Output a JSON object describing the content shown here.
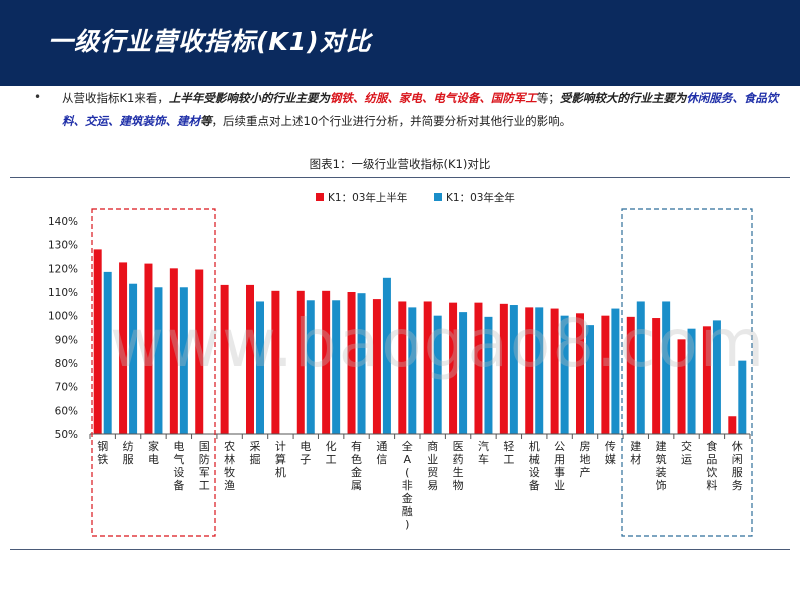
{
  "header": {
    "title": "一级行业营收指标(K1)对比"
  },
  "bullet": {
    "dot": "•",
    "p1": "从营收指标K1来看，",
    "p2": "上半年受影响较小的行业主要为",
    "h1": "钢铁、纺服、家电、电气设备、国防军工",
    "p3": "等；",
    "p4": "受影响较大的行业主要为",
    "h2": "休闲服务、食品饮料、交运、建筑装饰、建材",
    "p5": "等",
    "p6": "，后续重点对上述10个行业进行分析，并简要分析对其他行业的影响。"
  },
  "caption": "图表1：一级行业营收指标(K1)对比",
  "watermark": "www.baogao8.com",
  "chart_data": {
    "type": "bar",
    "categories": [
      "钢铁",
      "纺服",
      "家电",
      "电气设备",
      "国防军工",
      "农林牧渔",
      "采掘",
      "计算机",
      "电子",
      "化工",
      "有色金属",
      "通信",
      "全A(非金融)",
      "商业贸易",
      "医药生物",
      "汽车",
      "轻工",
      "机械设备",
      "公用事业",
      "房地产",
      "传媒",
      "建材",
      "建筑装饰",
      "交运",
      "食品饮料",
      "休闲服务"
    ],
    "series": [
      {
        "name": "K1：03年上半年",
        "color": "#e8111b",
        "values": [
          128,
          122.5,
          122,
          120,
          119.5,
          113,
          113,
          110.5,
          110.5,
          110.5,
          110,
          107,
          106,
          106,
          105.5,
          105.5,
          105,
          103.5,
          103,
          101,
          100,
          99.5,
          99,
          90,
          95.5,
          57.5
        ]
      },
      {
        "name": "K1：03年全年",
        "color": "#1a8ec9",
        "values": [
          118.5,
          113.5,
          112,
          112,
          null,
          null,
          106,
          null,
          106.5,
          106.5,
          109.5,
          116,
          103.5,
          100,
          101.5,
          99.5,
          104.5,
          103.5,
          100,
          96,
          103,
          106,
          106,
          94.5,
          98,
          81
        ]
      }
    ],
    "yticks": [
      "140%",
      "130%",
      "120%",
      "110%",
      "100%",
      "90%",
      "80%",
      "70%",
      "60%",
      "50%"
    ],
    "ylim": [
      50,
      140
    ],
    "legend": "top-center"
  },
  "colors": {
    "header": "#0b2a5e",
    "red_box": "#d9141b",
    "blue_box": "#2e6e9a"
  }
}
